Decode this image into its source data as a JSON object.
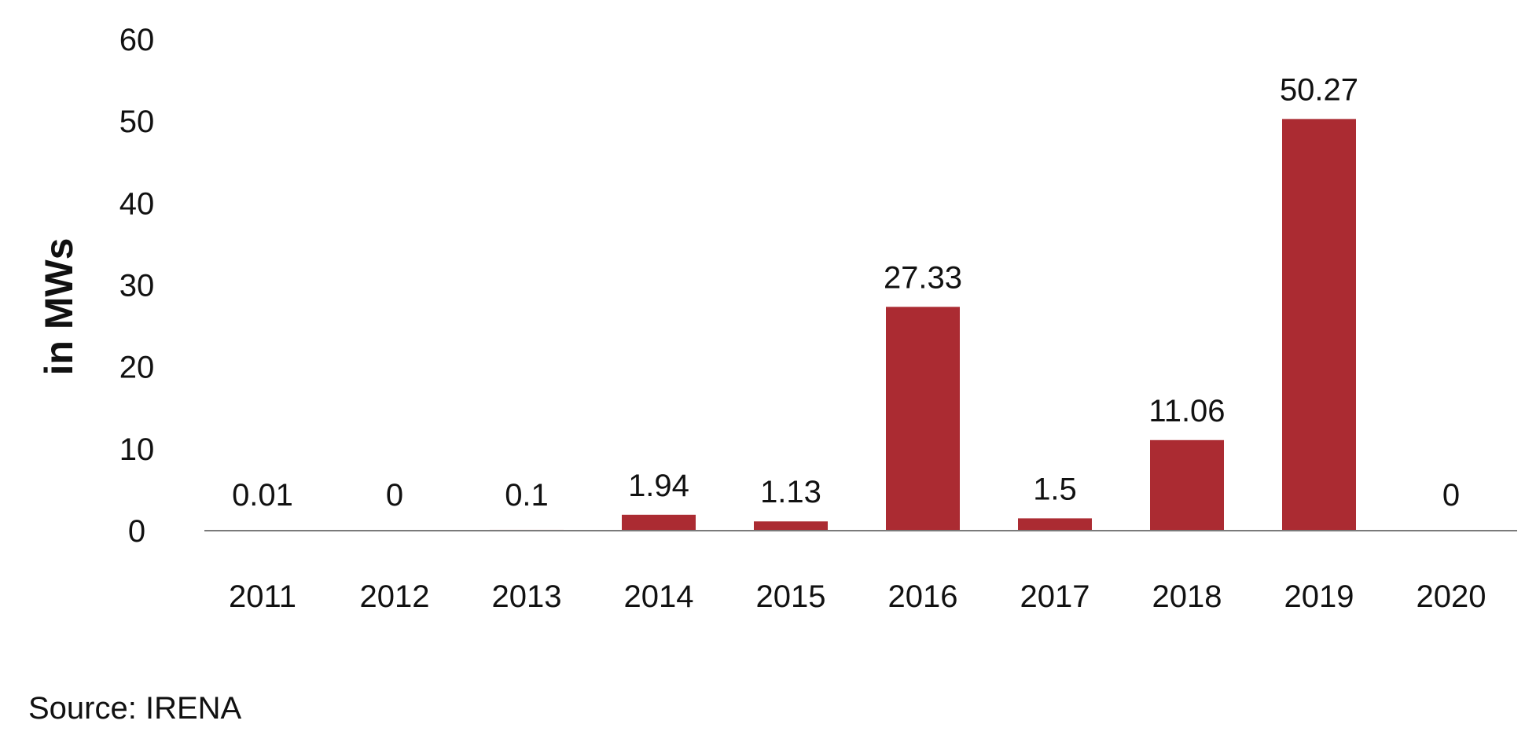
{
  "chart_data": {
    "type": "bar",
    "categories": [
      "2011",
      "2012",
      "2013",
      "2014",
      "2015",
      "2016",
      "2017",
      "2018",
      "2019",
      "2020"
    ],
    "values": [
      0.01,
      0,
      0.1,
      1.94,
      1.13,
      27.33,
      1.5,
      11.06,
      50.27,
      0
    ],
    "data_labels": [
      "0.01",
      "0",
      "0.1",
      "1.94",
      "1.13",
      "27.33",
      "1.5",
      "11.06",
      "50.27",
      "0"
    ],
    "title": "",
    "xlabel": "",
    "ylabel": "in MWs",
    "ylim": [
      0,
      60
    ],
    "yticks": [
      0,
      10,
      20,
      30,
      40,
      50,
      60
    ],
    "grid": false,
    "legend": "none",
    "bar_color": "#ab2b32",
    "axis_color": "#7a7a7a"
  },
  "source": "Source: IRENA"
}
